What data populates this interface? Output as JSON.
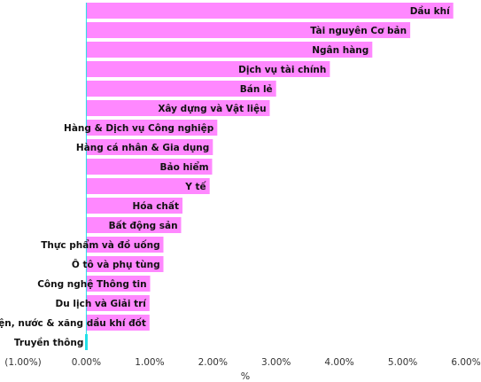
{
  "chart_data": {
    "type": "bar",
    "orientation": "horizontal",
    "categories": [
      "Dầu khí",
      "Tài nguyên Cơ bản",
      "Ngân hàng",
      "Dịch vụ tài chính",
      "Bán lẻ",
      "Xây dựng và Vật liệu",
      "Hàng & Dịch vụ Công nghiệp",
      "Hàng cá nhân & Gia dụng",
      "Bảo hiểm",
      "Y tế",
      "Hóa chất",
      "Bất động sản",
      "Thực phẩm và đồ uống",
      "Ô tô và phụ tùng",
      "Công nghệ Thông tin",
      "Du lịch và Giải trí",
      "Điện, nước & xăng dầu khí đốt",
      "Truyền thông"
    ],
    "values": [
      5.8,
      5.12,
      4.52,
      3.85,
      3.0,
      2.9,
      2.07,
      2.0,
      1.99,
      1.95,
      1.52,
      1.5,
      1.22,
      1.22,
      1.01,
      1.0,
      1.0,
      -0.02
    ],
    "colors": [
      "#ff88ff",
      "#ff88ff",
      "#ff88ff",
      "#ff88ff",
      "#ff88ff",
      "#ff88ff",
      "#ff88ff",
      "#ff88ff",
      "#ff88ff",
      "#ff88ff",
      "#ff88ff",
      "#ff88ff",
      "#ff88ff",
      "#ff88ff",
      "#ff88ff",
      "#ff88ff",
      "#ff88ff",
      "#22e0e8"
    ],
    "xlabel": "%",
    "ylabel": "",
    "xlim": [
      -1,
      6
    ],
    "xticks": [
      -1,
      0,
      1,
      2,
      3,
      4,
      5,
      6
    ],
    "xtick_labels": [
      "(1.00%)",
      "0.00%",
      "1.00%",
      "2.00%",
      "3.00%",
      "4.00%",
      "5.00%",
      "6.00%"
    ],
    "grid": false,
    "legend": "none"
  }
}
